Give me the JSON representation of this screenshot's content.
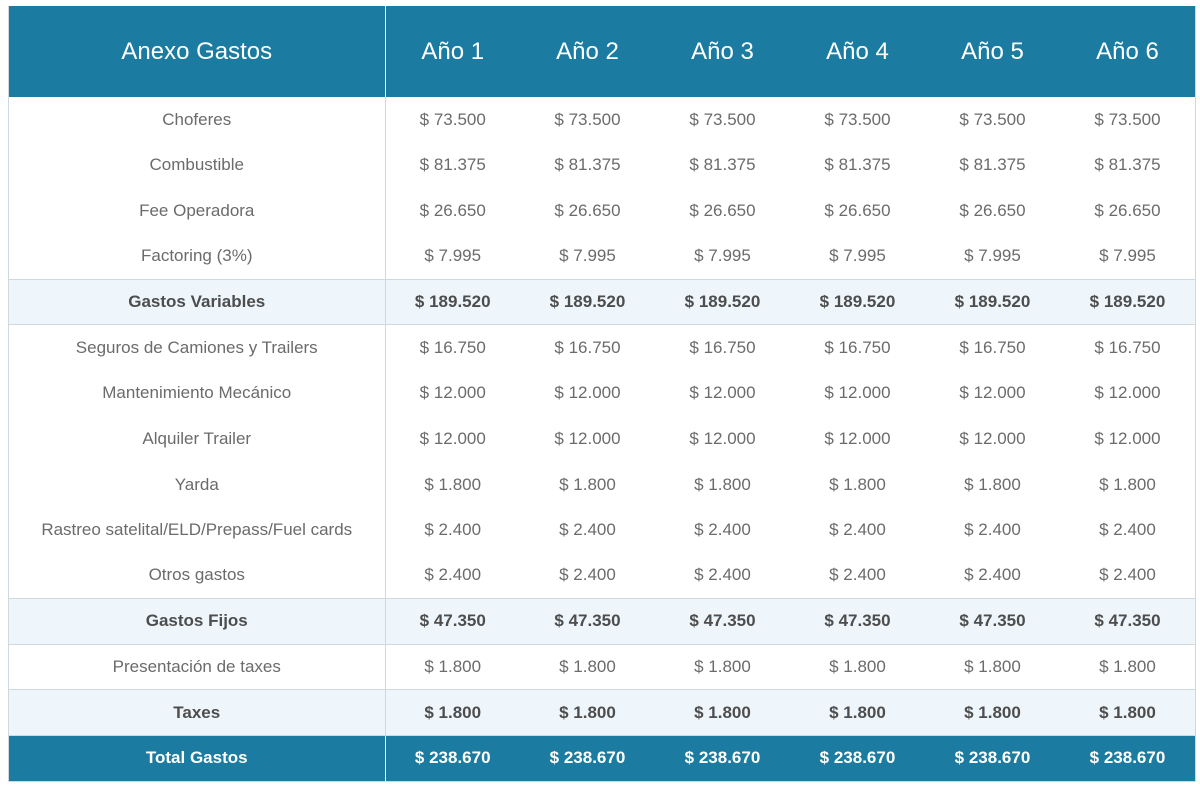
{
  "table": {
    "header": {
      "title": "Anexo Gastos",
      "years": [
        "Año 1",
        "Año 2",
        "Año 3",
        "Año 4",
        "Año 5",
        "Año 6"
      ]
    },
    "rows": [
      {
        "label": "Choferes",
        "values": [
          "$ 73.500",
          "$ 73.500",
          "$ 73.500",
          "$ 73.500",
          "$ 73.500",
          "$ 73.500"
        ]
      },
      {
        "label": "Combustible",
        "values": [
          "$ 81.375",
          "$ 81.375",
          "$ 81.375",
          "$ 81.375",
          "$ 81.375",
          "$ 81.375"
        ]
      },
      {
        "label": "Fee Operadora",
        "values": [
          "$ 26.650",
          "$ 26.650",
          "$ 26.650",
          "$ 26.650",
          "$ 26.650",
          "$ 26.650"
        ]
      },
      {
        "label": "Factoring (3%)",
        "values": [
          "$ 7.995",
          "$ 7.995",
          "$ 7.995",
          "$ 7.995",
          "$ 7.995",
          "$ 7.995"
        ]
      },
      {
        "label": "Gastos Variables",
        "values": [
          "$ 189.520",
          "$ 189.520",
          "$ 189.520",
          "$ 189.520",
          "$ 189.520",
          "$ 189.520"
        ]
      },
      {
        "label": "Seguros de Camiones y Trailers",
        "values": [
          "$ 16.750",
          "$ 16.750",
          "$ 16.750",
          "$ 16.750",
          "$ 16.750",
          "$ 16.750"
        ]
      },
      {
        "label": "Mantenimiento Mecánico",
        "values": [
          "$ 12.000",
          "$ 12.000",
          "$ 12.000",
          "$ 12.000",
          "$ 12.000",
          "$ 12.000"
        ]
      },
      {
        "label": "Alquiler Trailer",
        "values": [
          "$ 12.000",
          "$ 12.000",
          "$ 12.000",
          "$ 12.000",
          "$ 12.000",
          "$ 12.000"
        ]
      },
      {
        "label": "Yarda",
        "values": [
          "$ 1.800",
          "$ 1.800",
          "$ 1.800",
          "$ 1.800",
          "$ 1.800",
          "$ 1.800"
        ]
      },
      {
        "label": "Rastreo satelital/ELD/Prepass/Fuel cards",
        "values": [
          "$ 2.400",
          "$ 2.400",
          "$ 2.400",
          "$ 2.400",
          "$ 2.400",
          "$ 2.400"
        ]
      },
      {
        "label": "Otros gastos",
        "values": [
          "$ 2.400",
          "$ 2.400",
          "$ 2.400",
          "$ 2.400",
          "$ 2.400",
          "$ 2.400"
        ]
      },
      {
        "label": "Gastos Fijos",
        "values": [
          "$ 47.350",
          "$ 47.350",
          "$ 47.350",
          "$ 47.350",
          "$ 47.350",
          "$ 47.350"
        ]
      },
      {
        "label": "Presentación de taxes",
        "values": [
          "$ 1.800",
          "$ 1.800",
          "$ 1.800",
          "$ 1.800",
          "$ 1.800",
          "$ 1.800"
        ]
      },
      {
        "label": "Taxes",
        "values": [
          "$ 1.800",
          "$ 1.800",
          "$ 1.800",
          "$ 1.800",
          "$ 1.800",
          "$ 1.800"
        ]
      },
      {
        "label": "Total Gastos",
        "values": [
          "$ 238.670",
          "$ 238.670",
          "$ 238.670",
          "$ 238.670",
          "$ 238.670",
          "$ 238.670"
        ]
      }
    ]
  },
  "colors": {
    "header_bg": "#1b7ba0",
    "header_text": "#ffffff",
    "subtotal_bg": "#eef6fc",
    "item_text": "#6b6b6b",
    "subtotal_text": "#4d4d4d"
  }
}
